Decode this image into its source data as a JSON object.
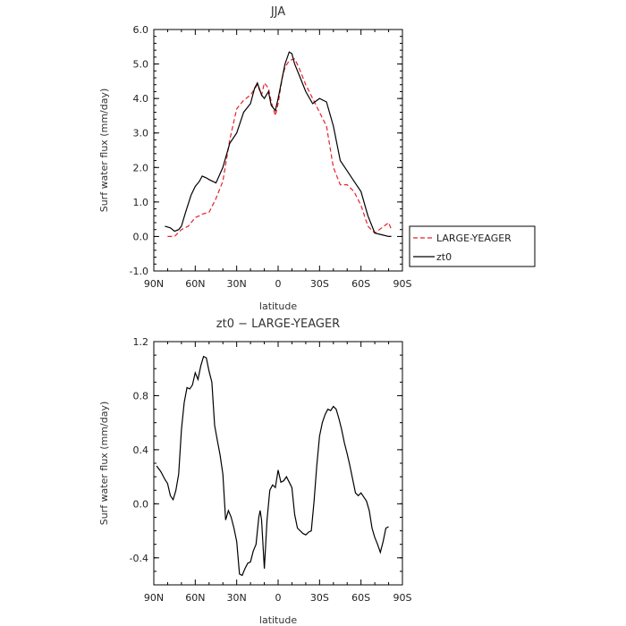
{
  "chart_data": [
    {
      "type": "line",
      "title": "JJA",
      "xlabel": "latitude",
      "ylabel": "Surf water flux (mm/day)",
      "xlim": [
        90,
        -90
      ],
      "ylim": [
        -1.0,
        6.0
      ],
      "xticks": [
        90,
        60,
        30,
        0,
        -30,
        -60,
        -90
      ],
      "xtick_labels": [
        "90N",
        "60N",
        "30N",
        "0",
        "30S",
        "60S",
        "90S"
      ],
      "yticks": [
        -1.0,
        0.0,
        1.0,
        2.0,
        3.0,
        4.0,
        5.0,
        6.0
      ],
      "ytick_labels": [
        "-1.0",
        "0.0",
        "1.0",
        "2.0",
        "3.0",
        "4.0",
        "5.0",
        "6.0"
      ],
      "legend": "right",
      "series": [
        {
          "name": "LARGE-YEAGER",
          "color": "#e8202a",
          "dash": true,
          "x": [
            80,
            75,
            70,
            65,
            60,
            57,
            55,
            50,
            45,
            40,
            35,
            30,
            25,
            20,
            15,
            12,
            10,
            7,
            5,
            2,
            0,
            -3,
            -5,
            -8,
            -12,
            -15,
            -18,
            -20,
            -25,
            -30,
            -35,
            -40,
            -45,
            -50,
            -55,
            -60,
            -65,
            -70,
            -75,
            -80,
            -82
          ],
          "y": [
            0.0,
            0.0,
            0.2,
            0.3,
            0.55,
            0.6,
            0.65,
            0.7,
            1.1,
            1.6,
            2.8,
            3.7,
            3.95,
            4.1,
            4.4,
            4.1,
            4.45,
            4.3,
            3.9,
            3.5,
            3.85,
            4.6,
            4.9,
            5.1,
            5.15,
            4.9,
            4.6,
            4.4,
            4.0,
            3.6,
            3.2,
            2.0,
            1.5,
            1.5,
            1.3,
            0.9,
            0.3,
            0.1,
            0.25,
            0.4,
            0.2
          ]
        },
        {
          "name": "zt0",
          "color": "#000000",
          "dash": false,
          "x": [
            82,
            78,
            75,
            72,
            70,
            67,
            63,
            60,
            57,
            55,
            52,
            50,
            45,
            40,
            35,
            30,
            25,
            20,
            17,
            15,
            12,
            10,
            7,
            5,
            2,
            0,
            -3,
            -5,
            -8,
            -10,
            -12,
            -15,
            -20,
            -25,
            -30,
            -35,
            -40,
            -45,
            -50,
            -55,
            -60,
            -65,
            -70,
            -75,
            -80,
            -82
          ],
          "y": [
            0.3,
            0.25,
            0.15,
            0.2,
            0.3,
            0.7,
            1.2,
            1.45,
            1.6,
            1.75,
            1.7,
            1.65,
            1.55,
            2.0,
            2.7,
            3.0,
            3.6,
            3.85,
            4.3,
            4.45,
            4.1,
            4.0,
            4.2,
            3.8,
            3.65,
            4.0,
            4.6,
            5.0,
            5.35,
            5.3,
            5.0,
            4.7,
            4.2,
            3.85,
            4.0,
            3.9,
            3.2,
            2.2,
            1.9,
            1.6,
            1.3,
            0.6,
            0.1,
            0.05,
            0.0,
            0.0
          ]
        }
      ]
    },
    {
      "type": "line",
      "title": "zt0 − LARGE-YEAGER",
      "xlabel": "latitude",
      "ylabel": "Surf water flux (mm/day)",
      "xlim": [
        90,
        -90
      ],
      "ylim": [
        -0.6,
        1.2
      ],
      "xticks": [
        90,
        60,
        30,
        0,
        -30,
        -60,
        -90
      ],
      "xtick_labels": [
        "90N",
        "60N",
        "30N",
        "0",
        "30S",
        "60S",
        "90S"
      ],
      "yticks": [
        -0.4,
        0.0,
        0.4,
        0.8,
        1.2
      ],
      "ytick_labels": [
        "-0.4",
        "0.0",
        "0.4",
        "0.8",
        "1.2"
      ],
      "series": [
        {
          "name": "zt0 − LARGE-YEAGER",
          "color": "#000000",
          "dash": false,
          "x": [
            88,
            85,
            82,
            80,
            78,
            76,
            74,
            72,
            70,
            68,
            66,
            64,
            62,
            60,
            58,
            56,
            54,
            52,
            50,
            48,
            46,
            44,
            42,
            40,
            38,
            36,
            34,
            32,
            30,
            28,
            26,
            24,
            22,
            20,
            18,
            16,
            14,
            13,
            12,
            10,
            8,
            6,
            4,
            2,
            0,
            -2,
            -4,
            -6,
            -8,
            -10,
            -12,
            -14,
            -16,
            -18,
            -20,
            -22,
            -24,
            -26,
            -28,
            -30,
            -32,
            -34,
            -36,
            -38,
            -40,
            -42,
            -44,
            -46,
            -48,
            -50,
            -52,
            -54,
            -56,
            -58,
            -60,
            -62,
            -64,
            -66,
            -68,
            -70,
            -72,
            -74,
            -76,
            -78,
            -80
          ],
          "y": [
            0.28,
            0.24,
            0.18,
            0.15,
            0.06,
            0.03,
            0.1,
            0.22,
            0.55,
            0.75,
            0.86,
            0.85,
            0.88,
            0.97,
            0.92,
            1.02,
            1.09,
            1.08,
            0.98,
            0.9,
            0.58,
            0.47,
            0.36,
            0.22,
            -0.12,
            -0.05,
            -0.1,
            -0.18,
            -0.28,
            -0.52,
            -0.53,
            -0.48,
            -0.44,
            -0.43,
            -0.35,
            -0.3,
            -0.1,
            -0.05,
            -0.12,
            -0.48,
            -0.12,
            0.1,
            0.14,
            0.12,
            0.25,
            0.16,
            0.17,
            0.2,
            0.16,
            0.12,
            -0.08,
            -0.18,
            -0.2,
            -0.22,
            -0.23,
            -0.21,
            -0.2,
            0.02,
            0.28,
            0.5,
            0.6,
            0.66,
            0.7,
            0.69,
            0.72,
            0.7,
            0.63,
            0.55,
            0.45,
            0.37,
            0.28,
            0.18,
            0.08,
            0.06,
            0.08,
            0.05,
            0.02,
            -0.05,
            -0.18,
            -0.25,
            -0.3,
            -0.36,
            -0.28,
            -0.18,
            -0.17
          ]
        }
      ]
    }
  ]
}
